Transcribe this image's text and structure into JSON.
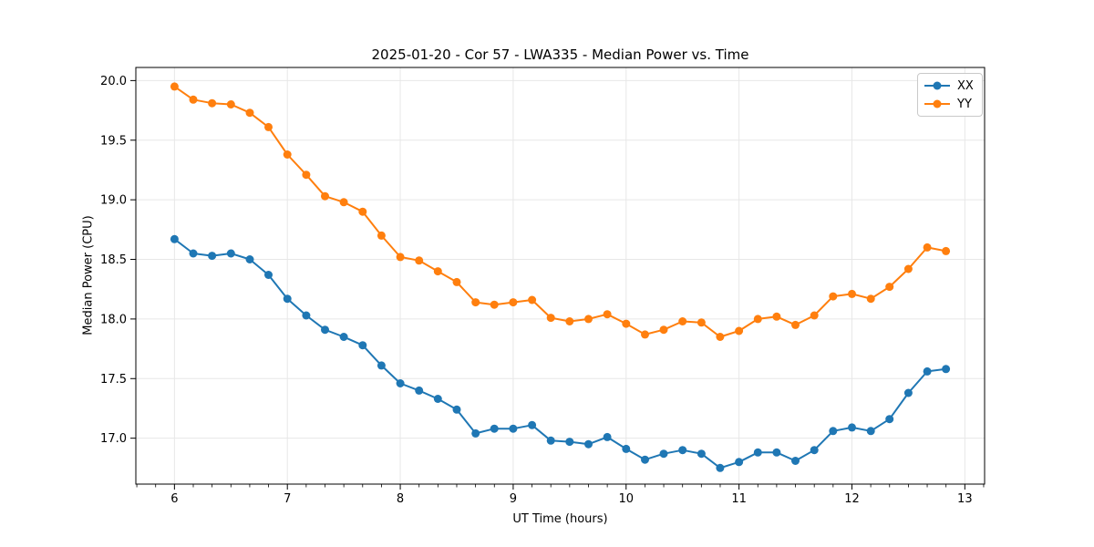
{
  "chart_data": {
    "type": "line",
    "title": "2025-01-20 - Cor 57 - LWA335 - Median Power vs. Time",
    "xlabel": "UT Time (hours)",
    "ylabel": "Median Power (CPU)",
    "xlim": [
      5.658,
      13.175
    ],
    "ylim": [
      16.615,
      20.11
    ],
    "xticks": [
      6,
      7,
      8,
      9,
      10,
      11,
      12,
      13
    ],
    "yticks": [
      17.0,
      17.5,
      18.0,
      18.5,
      19.0,
      19.5,
      20.0
    ],
    "x_minor_tick_step": 0.1667,
    "grid": true,
    "legend_position": "upper right",
    "marker": "circle",
    "x": [
      6.0,
      6.167,
      6.333,
      6.5,
      6.667,
      6.833,
      7.0,
      7.167,
      7.333,
      7.5,
      7.667,
      7.833,
      8.0,
      8.167,
      8.333,
      8.5,
      8.667,
      8.833,
      9.0,
      9.167,
      9.333,
      9.5,
      9.667,
      9.833,
      10.0,
      10.167,
      10.333,
      10.5,
      10.667,
      10.833,
      11.0,
      11.167,
      11.333,
      11.5,
      11.667,
      11.833,
      12.0,
      12.167,
      12.333,
      12.5,
      12.667,
      12.833
    ],
    "series": [
      {
        "name": "XX",
        "color": "#1f77b4",
        "values": [
          18.67,
          18.55,
          18.53,
          18.55,
          18.5,
          18.37,
          18.17,
          18.03,
          17.91,
          17.85,
          17.78,
          17.61,
          17.46,
          17.4,
          17.33,
          17.24,
          17.04,
          17.08,
          17.08,
          17.11,
          16.98,
          16.97,
          16.95,
          17.01,
          16.91,
          16.82,
          16.87,
          16.9,
          16.87,
          16.75,
          16.8,
          16.88,
          16.88,
          16.81,
          16.9,
          17.06,
          17.09,
          17.06,
          17.16,
          17.38,
          17.56,
          17.58
        ]
      },
      {
        "name": "YY",
        "color": "#ff7f0e",
        "values": [
          19.95,
          19.84,
          19.81,
          19.8,
          19.73,
          19.61,
          19.38,
          19.21,
          19.03,
          18.98,
          18.9,
          18.7,
          18.52,
          18.49,
          18.4,
          18.31,
          18.14,
          18.12,
          18.14,
          18.16,
          18.01,
          17.98,
          18.0,
          18.04,
          17.96,
          17.87,
          17.91,
          17.98,
          17.97,
          17.85,
          17.9,
          18.0,
          18.02,
          17.95,
          18.03,
          18.19,
          18.21,
          18.17,
          18.27,
          18.42,
          18.6,
          18.57
        ]
      }
    ],
    "colors": {
      "grid": "#e7e7e7",
      "axis": "#000000",
      "text": "#000000",
      "background": "#ffffff"
    }
  }
}
